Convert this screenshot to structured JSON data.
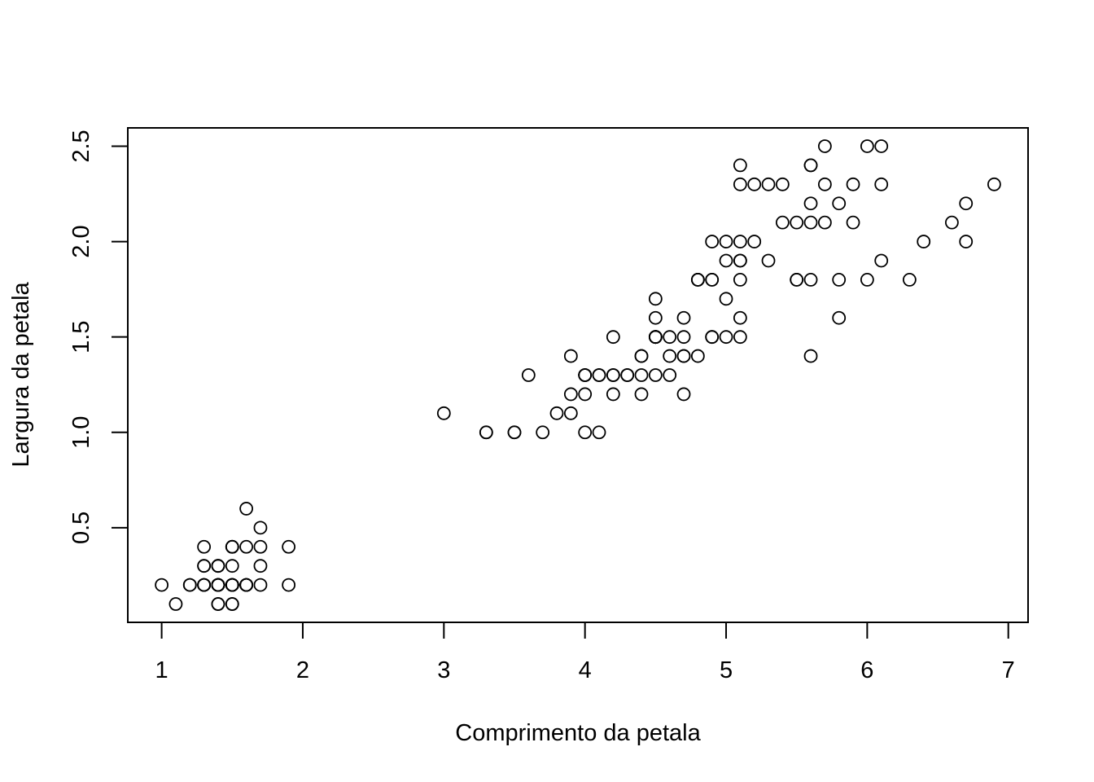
{
  "chart_data": {
    "type": "scatter",
    "title": "",
    "xlabel": "Comprimento da petala",
    "ylabel": "Largura da petala",
    "xlim": [
      0.76,
      7.14
    ],
    "ylim": [
      0.004,
      2.596
    ],
    "xticks": [
      1,
      2,
      3,
      4,
      5,
      6,
      7
    ],
    "xtick_labels": [
      "1",
      "2",
      "3",
      "4",
      "5",
      "6",
      "7"
    ],
    "yticks": [
      0.5,
      1.0,
      1.5,
      2.0,
      2.5
    ],
    "ytick_labels": [
      "0.5",
      "1.0",
      "1.5",
      "2.0",
      "2.5"
    ],
    "grid": false,
    "marker": "open-circle",
    "marker_color": "#000000",
    "points": [
      [
        1.4,
        0.2
      ],
      [
        1.4,
        0.2
      ],
      [
        1.3,
        0.2
      ],
      [
        1.5,
        0.2
      ],
      [
        1.4,
        0.2
      ],
      [
        1.7,
        0.4
      ],
      [
        1.4,
        0.3
      ],
      [
        1.5,
        0.2
      ],
      [
        1.4,
        0.2
      ],
      [
        1.5,
        0.1
      ],
      [
        1.5,
        0.2
      ],
      [
        1.6,
        0.2
      ],
      [
        1.4,
        0.1
      ],
      [
        1.1,
        0.1
      ],
      [
        1.2,
        0.2
      ],
      [
        1.5,
        0.4
      ],
      [
        1.3,
        0.4
      ],
      [
        1.4,
        0.3
      ],
      [
        1.7,
        0.3
      ],
      [
        1.5,
        0.3
      ],
      [
        1.7,
        0.2
      ],
      [
        1.5,
        0.4
      ],
      [
        1.0,
        0.2
      ],
      [
        1.7,
        0.5
      ],
      [
        1.9,
        0.2
      ],
      [
        1.6,
        0.2
      ],
      [
        1.6,
        0.4
      ],
      [
        1.5,
        0.2
      ],
      [
        1.4,
        0.2
      ],
      [
        1.6,
        0.2
      ],
      [
        1.6,
        0.2
      ],
      [
        1.5,
        0.4
      ],
      [
        1.5,
        0.1
      ],
      [
        1.4,
        0.2
      ],
      [
        1.5,
        0.2
      ],
      [
        1.2,
        0.2
      ],
      [
        1.3,
        0.2
      ],
      [
        1.4,
        0.1
      ],
      [
        1.3,
        0.2
      ],
      [
        1.5,
        0.2
      ],
      [
        1.3,
        0.3
      ],
      [
        1.3,
        0.3
      ],
      [
        1.3,
        0.2
      ],
      [
        1.6,
        0.6
      ],
      [
        1.9,
        0.4
      ],
      [
        1.4,
        0.3
      ],
      [
        1.6,
        0.2
      ],
      [
        1.4,
        0.2
      ],
      [
        1.5,
        0.2
      ],
      [
        1.4,
        0.2
      ],
      [
        4.7,
        1.4
      ],
      [
        4.5,
        1.5
      ],
      [
        4.9,
        1.5
      ],
      [
        4.0,
        1.3
      ],
      [
        4.6,
        1.5
      ],
      [
        4.5,
        1.3
      ],
      [
        4.7,
        1.6
      ],
      [
        3.3,
        1.0
      ],
      [
        4.6,
        1.3
      ],
      [
        3.9,
        1.4
      ],
      [
        3.5,
        1.0
      ],
      [
        4.2,
        1.5
      ],
      [
        4.0,
        1.0
      ],
      [
        4.7,
        1.4
      ],
      [
        3.6,
        1.3
      ],
      [
        4.4,
        1.4
      ],
      [
        4.5,
        1.5
      ],
      [
        4.1,
        1.0
      ],
      [
        4.5,
        1.5
      ],
      [
        3.9,
        1.1
      ],
      [
        4.8,
        1.8
      ],
      [
        4.0,
        1.3
      ],
      [
        4.9,
        1.5
      ],
      [
        4.7,
        1.2
      ],
      [
        4.3,
        1.3
      ],
      [
        4.4,
        1.4
      ],
      [
        4.8,
        1.4
      ],
      [
        5.0,
        1.7
      ],
      [
        4.5,
        1.5
      ],
      [
        3.5,
        1.0
      ],
      [
        3.8,
        1.1
      ],
      [
        3.7,
        1.0
      ],
      [
        3.9,
        1.2
      ],
      [
        5.1,
        1.6
      ],
      [
        4.5,
        1.5
      ],
      [
        4.5,
        1.6
      ],
      [
        4.7,
        1.5
      ],
      [
        4.4,
        1.3
      ],
      [
        4.1,
        1.3
      ],
      [
        4.0,
        1.3
      ],
      [
        4.4,
        1.2
      ],
      [
        4.6,
        1.4
      ],
      [
        4.0,
        1.2
      ],
      [
        3.3,
        1.0
      ],
      [
        4.2,
        1.3
      ],
      [
        4.2,
        1.2
      ],
      [
        4.2,
        1.3
      ],
      [
        4.3,
        1.3
      ],
      [
        3.0,
        1.1
      ],
      [
        4.1,
        1.3
      ],
      [
        6.0,
        2.5
      ],
      [
        5.1,
        1.9
      ],
      [
        5.9,
        2.1
      ],
      [
        5.6,
        1.8
      ],
      [
        5.8,
        2.2
      ],
      [
        6.6,
        2.1
      ],
      [
        4.5,
        1.7
      ],
      [
        6.3,
        1.8
      ],
      [
        5.8,
        1.8
      ],
      [
        6.1,
        2.5
      ],
      [
        5.1,
        2.0
      ],
      [
        5.3,
        1.9
      ],
      [
        5.5,
        2.1
      ],
      [
        5.0,
        2.0
      ],
      [
        5.1,
        2.4
      ],
      [
        5.3,
        2.3
      ],
      [
        5.5,
        1.8
      ],
      [
        6.7,
        2.2
      ],
      [
        6.9,
        2.3
      ],
      [
        5.0,
        1.5
      ],
      [
        5.7,
        2.3
      ],
      [
        4.9,
        2.0
      ],
      [
        6.7,
        2.0
      ],
      [
        4.9,
        1.8
      ],
      [
        5.7,
        2.1
      ],
      [
        6.0,
        1.8
      ],
      [
        4.8,
        1.8
      ],
      [
        4.9,
        1.8
      ],
      [
        5.6,
        2.1
      ],
      [
        5.8,
        1.6
      ],
      [
        6.1,
        1.9
      ],
      [
        6.4,
        2.0
      ],
      [
        5.6,
        2.2
      ],
      [
        5.1,
        1.5
      ],
      [
        5.6,
        1.4
      ],
      [
        6.1,
        2.3
      ],
      [
        5.6,
        2.4
      ],
      [
        5.5,
        1.8
      ],
      [
        4.8,
        1.8
      ],
      [
        5.4,
        2.1
      ],
      [
        5.6,
        2.4
      ],
      [
        5.1,
        2.3
      ],
      [
        5.1,
        1.9
      ],
      [
        5.9,
        2.3
      ],
      [
        5.7,
        2.5
      ],
      [
        5.2,
        2.3
      ],
      [
        5.0,
        1.9
      ],
      [
        5.2,
        2.0
      ],
      [
        5.4,
        2.3
      ],
      [
        5.1,
        1.8
      ]
    ]
  }
}
